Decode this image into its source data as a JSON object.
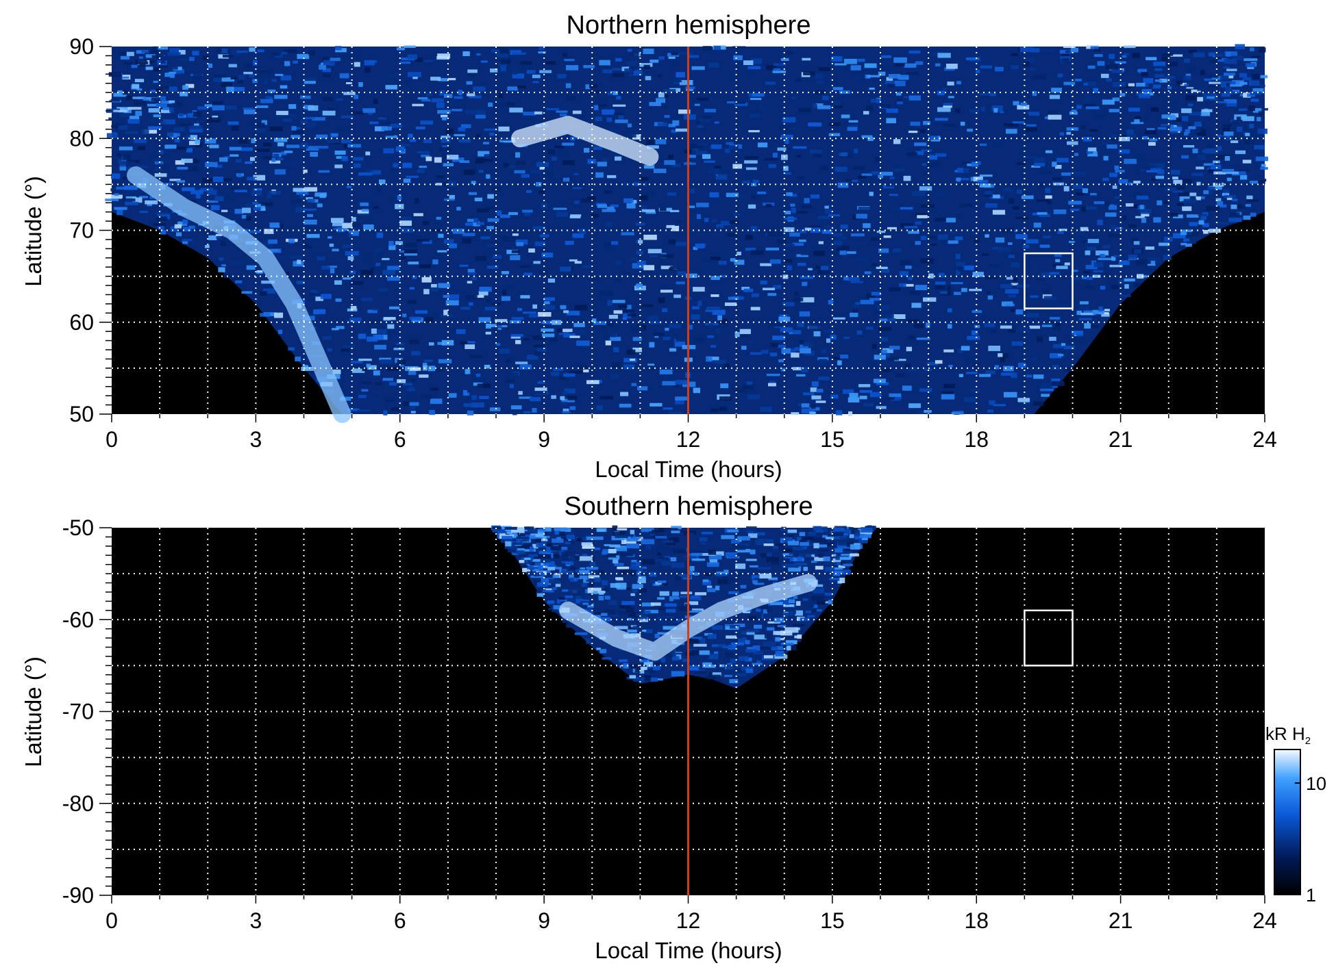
{
  "colors": {
    "background": "#000000",
    "emission": "#1e78ff",
    "noon_line": "#c8401e",
    "grid": "#ffffff",
    "box": "#ffffff"
  },
  "chart_data": [
    {
      "type": "heatmap",
      "title": "Northern hemisphere",
      "xlabel": "Local Time (hours)",
      "ylabel": "Latitude (°)",
      "xlim": [
        0,
        24
      ],
      "ylim": [
        50,
        90
      ],
      "xticks": [
        "0",
        "3",
        "6",
        "9",
        "12",
        "15",
        "18",
        "21",
        "24"
      ],
      "yticks": [
        "50",
        "60",
        "70",
        "80",
        "90"
      ],
      "grid": true,
      "reference_line_x": 12,
      "box": {
        "x": [
          19,
          20
        ],
        "y": [
          61.5,
          67.5
        ]
      },
      "coverage_edge": {
        "lt": [
          0,
          1,
          2,
          3,
          4,
          4.8,
          6,
          9,
          12,
          15,
          18,
          19.2,
          20,
          21,
          22,
          23,
          24
        ],
        "lat_min": [
          72,
          70,
          67,
          62,
          55,
          50,
          50,
          50,
          50,
          50,
          50,
          50,
          55,
          62,
          67,
          70,
          72
        ]
      },
      "bright_features": [
        {
          "lt": [
            0.5,
            1.5,
            2.5,
            3.2,
            3.8,
            4.3,
            4.8
          ],
          "lat": [
            76,
            72.5,
            70,
            67,
            62,
            56,
            50
          ],
          "level": 14
        },
        {
          "lt": [
            8.5,
            9.5,
            10.5,
            11.2
          ],
          "lat": [
            80,
            81.5,
            79.5,
            78
          ],
          "level": 18
        }
      ]
    },
    {
      "type": "heatmap",
      "title": "Southern hemisphere",
      "xlabel": "Local Time (hours)",
      "ylabel": "Latitude (°)",
      "xlim": [
        0,
        24
      ],
      "ylim": [
        -90,
        -50
      ],
      "xticks": [
        "0",
        "3",
        "6",
        "9",
        "12",
        "15",
        "18",
        "21",
        "24"
      ],
      "yticks": [
        "-90",
        "-80",
        "-70",
        "-60",
        "-50"
      ],
      "grid": true,
      "reference_line_x": 12,
      "box": {
        "x": [
          19,
          20
        ],
        "y": [
          -65,
          -59
        ]
      },
      "coverage_edge": {
        "lt": [
          8,
          9,
          10,
          11,
          11.5,
          12,
          12.5,
          13,
          14,
          15,
          15.8
        ],
        "lat_min": [
          -50,
          -58,
          -63,
          -67,
          -66.5,
          -66,
          -66.5,
          -67.5,
          -64,
          -58,
          -50
        ]
      },
      "bright_features": [
        {
          "lt": [
            9.5,
            10.5,
            11.3,
            12,
            12.7,
            13.5,
            14.5
          ],
          "lat": [
            -59,
            -62,
            -63.5,
            -61,
            -59,
            -57.5,
            -56
          ],
          "level": 16
        }
      ]
    }
  ],
  "colorbar": {
    "label_prefix": "kR H",
    "label_sub": "2",
    "scale": "log",
    "range": [
      1,
      20
    ],
    "ticks": [
      "1",
      "10"
    ]
  }
}
